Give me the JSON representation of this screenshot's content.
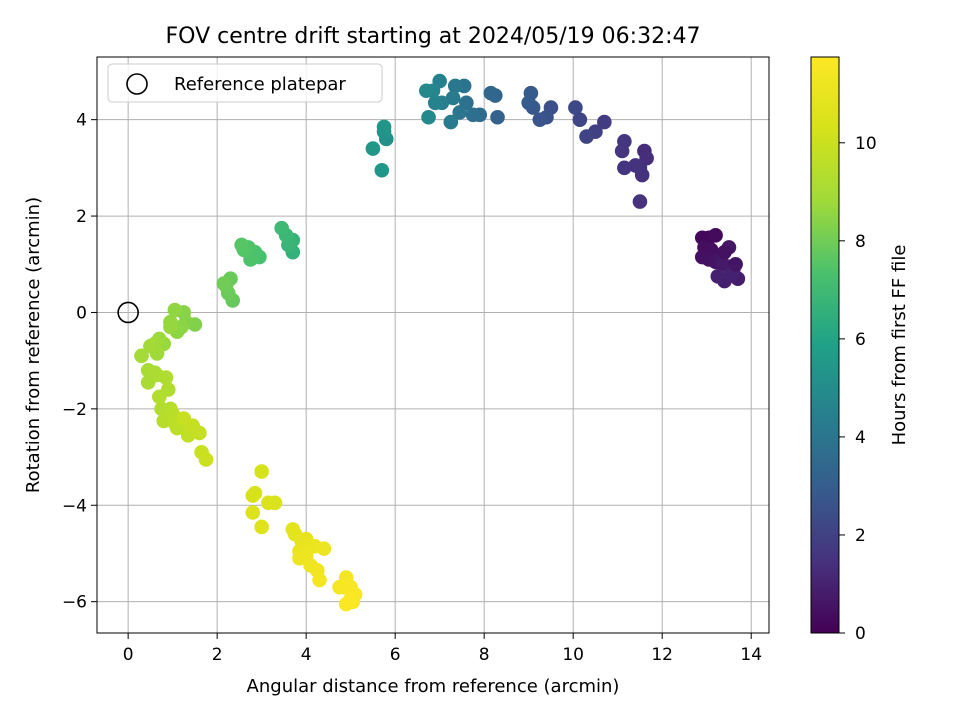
{
  "chart_data": {
    "type": "scatter",
    "title": "FOV centre drift starting at 2024/05/19 06:32:47",
    "xlabel": "Angular distance from reference (arcmin)",
    "ylabel": "Rotation from reference (arcmin)",
    "xlim": [
      -0.7,
      14.4
    ],
    "ylim": [
      -6.65,
      5.3
    ],
    "xticks": [
      0,
      2,
      4,
      6,
      8,
      10,
      12,
      14
    ],
    "yticks": [
      -6,
      -4,
      -2,
      0,
      2,
      4
    ],
    "grid": true,
    "legend": {
      "placement": "top-left",
      "entries": [
        "Reference platepar"
      ]
    },
    "reference_point": {
      "x": 0,
      "y": 0
    },
    "colorbar": {
      "label": "Hours from first FF file",
      "range": [
        0,
        11.75
      ],
      "ticks": [
        0,
        2,
        4,
        6,
        8,
        10
      ],
      "colormap": "viridis"
    },
    "series": [
      {
        "points": [
          [
            12.9,
            1.55,
            0.2
          ],
          [
            13.05,
            1.55,
            0.25
          ],
          [
            13.2,
            1.6,
            0.3
          ],
          [
            12.95,
            1.35,
            0.35
          ],
          [
            13.1,
            1.3,
            0.4
          ],
          [
            12.9,
            1.15,
            0.45
          ],
          [
            13.05,
            1.1,
            0.5
          ],
          [
            13.2,
            1.05,
            0.55
          ],
          [
            13.35,
            1.2,
            0.6
          ],
          [
            13.5,
            1.35,
            0.65
          ],
          [
            13.35,
            1.0,
            0.7
          ],
          [
            13.5,
            0.95,
            0.75
          ],
          [
            13.6,
            0.9,
            0.8
          ],
          [
            13.7,
            0.7,
            0.85
          ],
          [
            13.4,
            0.65,
            0.9
          ],
          [
            13.25,
            0.75,
            0.95
          ],
          [
            13.55,
            0.8,
            1.0
          ],
          [
            13.4,
            1.25,
            0.5
          ],
          [
            13.65,
            1.0,
            0.6
          ],
          [
            11.6,
            3.35,
            1.3
          ],
          [
            11.65,
            3.2,
            1.35
          ],
          [
            11.5,
            3.0,
            1.4
          ],
          [
            11.55,
            2.85,
            1.45
          ],
          [
            11.4,
            3.05,
            1.5
          ],
          [
            11.15,
            3.0,
            1.55
          ],
          [
            11.1,
            3.35,
            1.6
          ],
          [
            11.15,
            3.55,
            1.65
          ],
          [
            11.5,
            2.3,
            1.5
          ],
          [
            10.7,
            3.95,
            1.85
          ],
          [
            10.5,
            3.75,
            1.95
          ],
          [
            10.3,
            3.65,
            2.05
          ],
          [
            10.15,
            4.0,
            2.15
          ],
          [
            10.05,
            4.25,
            2.25
          ],
          [
            9.5,
            4.25,
            2.5
          ],
          [
            9.4,
            4.05,
            2.6
          ],
          [
            9.25,
            4.0,
            2.7
          ],
          [
            9.1,
            4.25,
            2.8
          ],
          [
            9.05,
            4.55,
            2.9
          ],
          [
            9.0,
            4.35,
            2.95
          ],
          [
            8.3,
            4.05,
            3.2
          ],
          [
            8.25,
            4.5,
            3.3
          ],
          [
            8.15,
            4.55,
            3.4
          ],
          [
            7.9,
            4.1,
            3.6
          ],
          [
            7.75,
            4.1,
            3.7
          ],
          [
            7.6,
            4.35,
            3.8
          ],
          [
            7.55,
            4.7,
            3.9
          ],
          [
            7.45,
            4.15,
            4.0
          ],
          [
            7.35,
            4.7,
            4.1
          ],
          [
            7.3,
            4.45,
            4.2
          ],
          [
            7.25,
            3.95,
            4.25
          ],
          [
            7.05,
            4.35,
            4.4
          ],
          [
            7.0,
            4.8,
            4.5
          ],
          [
            6.9,
            4.35,
            4.6
          ],
          [
            6.85,
            4.6,
            4.7
          ],
          [
            6.75,
            4.05,
            4.8
          ],
          [
            6.7,
            4.6,
            4.85
          ],
          [
            5.8,
            3.6,
            5.2
          ],
          [
            5.75,
            3.75,
            5.3
          ],
          [
            5.75,
            3.85,
            5.35
          ],
          [
            5.5,
            3.4,
            5.4
          ],
          [
            5.7,
            2.95,
            5.45
          ],
          [
            3.7,
            1.25,
            6.6
          ],
          [
            3.7,
            1.5,
            6.7
          ],
          [
            3.6,
            1.4,
            6.8
          ],
          [
            3.55,
            1.6,
            6.9
          ],
          [
            3.45,
            1.75,
            6.95
          ],
          [
            2.95,
            1.15,
            7.3
          ],
          [
            2.85,
            1.25,
            7.35
          ],
          [
            2.75,
            1.1,
            7.4
          ],
          [
            2.7,
            1.35,
            7.45
          ],
          [
            2.6,
            1.3,
            7.5
          ],
          [
            2.55,
            1.4,
            7.55
          ],
          [
            2.35,
            0.25,
            7.8
          ],
          [
            2.3,
            0.7,
            7.85
          ],
          [
            2.25,
            0.4,
            7.9
          ],
          [
            2.2,
            0.55,
            7.95
          ],
          [
            2.15,
            0.6,
            8.0
          ],
          [
            1.5,
            -0.25,
            8.3
          ],
          [
            1.3,
            -0.2,
            8.35
          ],
          [
            1.25,
            0.0,
            8.4
          ],
          [
            1.2,
            -0.3,
            8.45
          ],
          [
            1.1,
            -0.4,
            8.5
          ],
          [
            1.05,
            0.05,
            8.55
          ],
          [
            0.95,
            -0.2,
            8.6
          ],
          [
            0.95,
            -0.3,
            8.65
          ],
          [
            0.8,
            -0.65,
            8.7
          ],
          [
            0.7,
            -0.55,
            8.75
          ],
          [
            0.65,
            -0.85,
            8.8
          ],
          [
            0.6,
            -0.65,
            8.85
          ],
          [
            0.5,
            -0.7,
            8.9
          ],
          [
            0.3,
            -0.9,
            8.95
          ],
          [
            0.45,
            -1.2,
            9.0
          ],
          [
            0.45,
            -1.45,
            9.05
          ],
          [
            0.6,
            -1.25,
            9.1
          ],
          [
            0.65,
            -1.3,
            9.15
          ],
          [
            0.85,
            -1.35,
            9.2
          ],
          [
            0.9,
            -1.6,
            9.25
          ],
          [
            0.7,
            -1.75,
            9.3
          ],
          [
            0.75,
            -2.0,
            9.35
          ],
          [
            0.95,
            -2.0,
            9.4
          ],
          [
            0.8,
            -2.25,
            9.45
          ],
          [
            1.0,
            -2.1,
            9.5
          ],
          [
            1.05,
            -2.3,
            9.55
          ],
          [
            1.1,
            -2.4,
            9.6
          ],
          [
            1.2,
            -2.3,
            9.65
          ],
          [
            1.35,
            -2.55,
            9.7
          ],
          [
            1.45,
            -2.45,
            9.75
          ],
          [
            1.6,
            -2.5,
            9.8
          ],
          [
            1.45,
            -2.35,
            9.85
          ],
          [
            1.25,
            -2.2,
            9.9
          ],
          [
            1.65,
            -2.9,
            9.95
          ],
          [
            1.75,
            -3.05,
            10.0
          ],
          [
            3.0,
            -3.3,
            10.3
          ],
          [
            2.85,
            -3.75,
            10.35
          ],
          [
            2.8,
            -3.8,
            10.4
          ],
          [
            3.15,
            -3.95,
            10.45
          ],
          [
            3.3,
            -3.95,
            10.5
          ],
          [
            2.8,
            -4.15,
            10.55
          ],
          [
            3.0,
            -4.45,
            10.6
          ],
          [
            3.7,
            -4.5,
            10.8
          ],
          [
            3.75,
            -4.6,
            10.85
          ],
          [
            3.9,
            -4.75,
            10.9
          ],
          [
            4.0,
            -4.7,
            10.95
          ],
          [
            3.85,
            -4.95,
            11.0
          ],
          [
            4.05,
            -4.9,
            11.05
          ],
          [
            4.2,
            -4.85,
            11.1
          ],
          [
            4.4,
            -4.9,
            11.15
          ],
          [
            3.85,
            -5.1,
            11.2
          ],
          [
            4.0,
            -5.05,
            11.2
          ],
          [
            4.1,
            -5.25,
            11.25
          ],
          [
            4.25,
            -5.35,
            11.3
          ],
          [
            4.3,
            -5.55,
            11.35
          ],
          [
            4.75,
            -5.7,
            11.4
          ],
          [
            4.9,
            -5.5,
            11.45
          ],
          [
            4.85,
            -5.7,
            11.5
          ],
          [
            5.0,
            -5.7,
            11.55
          ],
          [
            5.1,
            -5.85,
            11.6
          ],
          [
            5.05,
            -6.0,
            11.65
          ],
          [
            4.9,
            -6.05,
            11.7
          ],
          [
            5.0,
            -5.95,
            11.7
          ]
        ]
      }
    ]
  }
}
